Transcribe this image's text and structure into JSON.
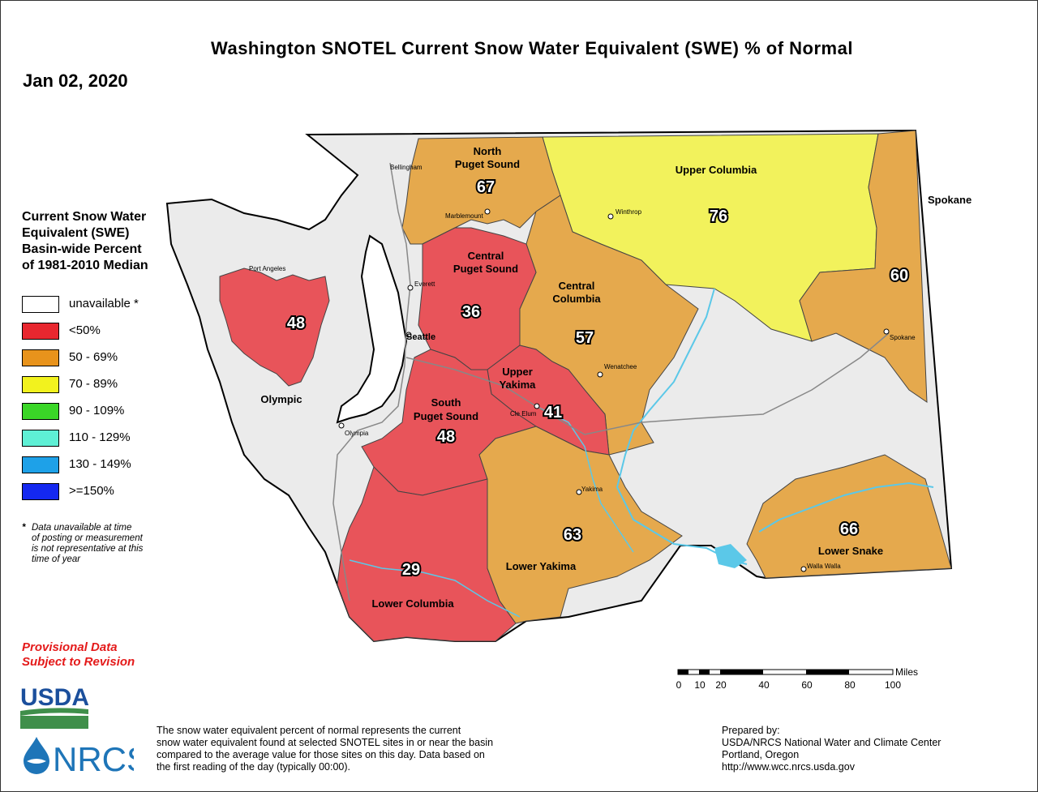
{
  "title": "Washington SNOTEL Current Snow Water Equivalent (SWE) % of Normal",
  "date": "Jan 02, 2020",
  "legend": {
    "title_lines": [
      "Current Snow Water",
      "Equivalent (SWE)",
      "Basin-wide Percent",
      "of 1981-2010 Median"
    ],
    "items": [
      {
        "label": "unavailable *",
        "color": "#ffffff"
      },
      {
        "label": "<50%",
        "color": "#e8272f"
      },
      {
        "label": "50 - 69%",
        "color": "#e8931c"
      },
      {
        "label": "70 - 89%",
        "color": "#f2f21e"
      },
      {
        "label": "90 - 109%",
        "color": "#3ad627"
      },
      {
        "label": "110 - 129%",
        "color": "#5ef0d5"
      },
      {
        "label": "130 - 149%",
        "color": "#1ea1e8"
      },
      {
        "label": ">=150%",
        "color": "#1428f0"
      }
    ]
  },
  "footnote": {
    "marker": "*",
    "lines": [
      "Data unavailable at time",
      "of posting or measurement",
      "is not representative at this",
      "time of year"
    ]
  },
  "provisional": [
    "Provisional Data",
    "Subject to Revision"
  ],
  "description_lines": [
    "The snow water equivalent percent of normal represents the current",
    "snow water equivalent found at selected SNOTEL sites in or near the basin",
    "compared to the average value for those sites on this day. Data based on",
    "the first reading of the day (typically 00:00)."
  ],
  "prepared_lines": [
    "Prepared by:",
    "USDA/NRCS National Water and Climate Center",
    "Portland, Oregon",
    "http://www.wcc.nrcs.usda.gov"
  ],
  "logos": {
    "usda": "USDA",
    "nrcs": "NRCS"
  },
  "scale": {
    "unit": "Miles",
    "ticks": [
      "0",
      "10",
      "20",
      "40",
      "60",
      "80",
      "100"
    ]
  },
  "colors": {
    "unavailable_fill": "#ebebeb",
    "red_fill": "#e8545a",
    "orange_fill": "#e5a94d",
    "yellow_fill": "#f2f25c",
    "water": "#5bc8e8",
    "usda_blue": "#1b4f9c",
    "usda_green": "#3f8f4a",
    "nrcs_blue": "#1e75b8"
  },
  "basins": [
    {
      "name_lines": [
        "North",
        "Puget Sound"
      ],
      "value": "67"
    },
    {
      "name_lines": [
        "Upper Columbia"
      ],
      "value": "76"
    },
    {
      "name_lines": [],
      "value": "60"
    },
    {
      "name_lines": [
        "Central",
        "Puget Sound"
      ],
      "value": "36"
    },
    {
      "name_lines": [
        "Central",
        "Columbia"
      ],
      "value": "57"
    },
    {
      "name_lines": [
        "Olympic"
      ],
      "value": "48"
    },
    {
      "name_lines": [
        "Upper",
        "Yakima"
      ],
      "value": "41"
    },
    {
      "name_lines": [
        "South",
        "Puget Sound"
      ],
      "value": "48"
    },
    {
      "name_lines": [
        "Lower Yakima"
      ],
      "value": "63"
    },
    {
      "name_lines": [
        "Lower Snake"
      ],
      "value": "66"
    },
    {
      "name_lines": [
        "Lower Columbia"
      ],
      "value": "29"
    }
  ],
  "region_label": "Spokane",
  "cities": [
    "Bellingham",
    "Marblemount",
    "Winthrop",
    "Port Angeles",
    "Everett",
    "Seattle",
    "Spokane",
    "Wenatchee",
    "Cle Elum",
    "Olympia",
    "Yakima",
    "Walla Walla"
  ]
}
